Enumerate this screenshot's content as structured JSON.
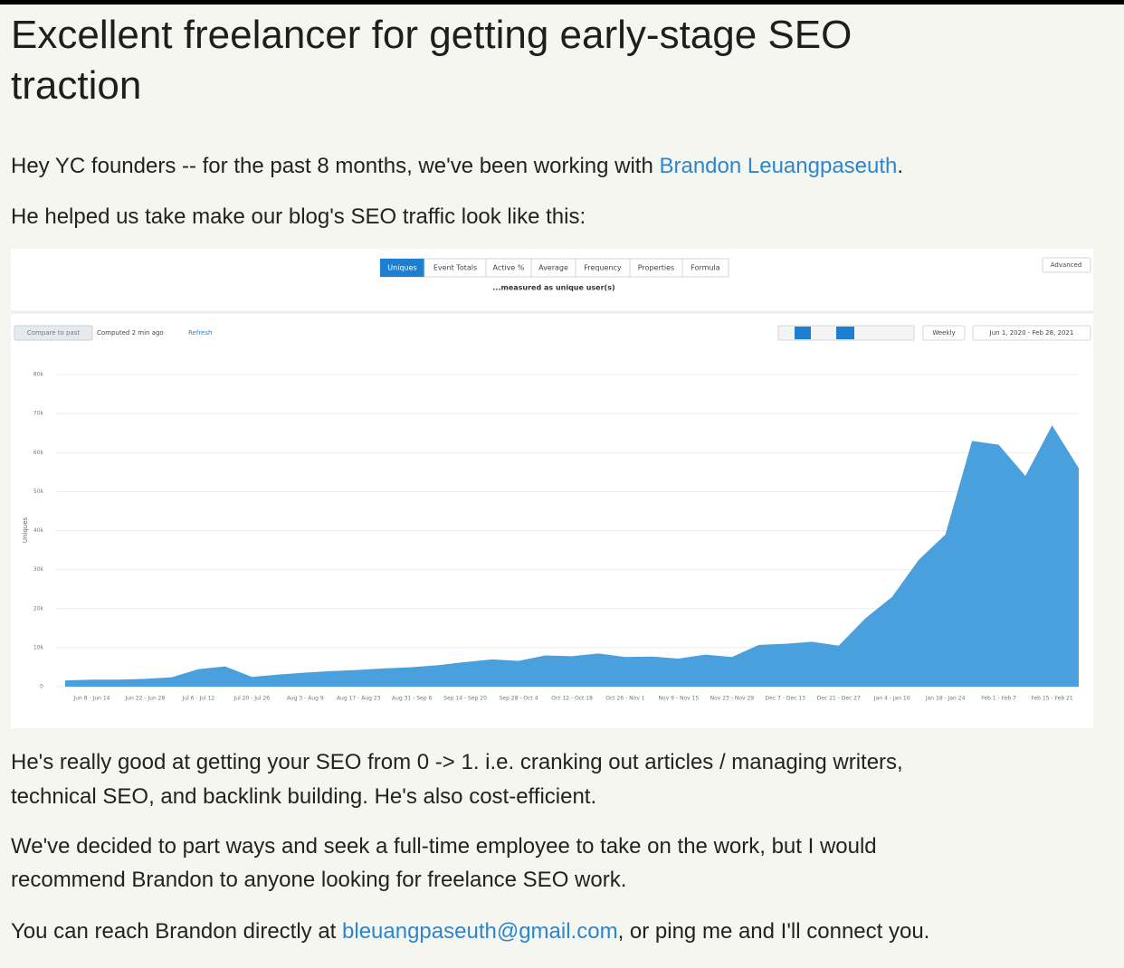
{
  "post": {
    "title_lines": [
      "Excellent freelancer for getting early-stage SEO",
      "traction"
    ],
    "intro": {
      "text": "Hey YC founders -- for the past 8 months, we've been working with ",
      "link": "Brandon Leuangpaseuth",
      "end": "."
    },
    "lead": "He helped us take make our blog's SEO traffic look like this:",
    "paragraphs": [
      [
        "He's really good at getting your SEO from 0 -> 1. i.e. cranking out articles / managing writers,",
        "technical SEO, and backlink building. He's also cost-efficient."
      ],
      [
        "We've decided to part ways and seek a full-time employee to take on the work, but I would",
        "recommend Brandon to anyone looking for freelance SEO work."
      ]
    ],
    "contact": {
      "text": "You can reach Brandon directly at ",
      "link": "bleuangpaseuth@gmail.com",
      "end": ", or ping me and I'll connect you."
    }
  },
  "chart_data": {
    "type": "area",
    "controls": {
      "tabs": [
        "Uniques",
        "Event Totals",
        "Active %",
        "Average",
        "Frequency",
        "Properties",
        "Formula"
      ],
      "measured": "...measured as unique user(s)",
      "advanced": "Advanced",
      "compare": "Compare to past",
      "computed": "Computed 2 min ago",
      "refresh": "Refresh",
      "interval": "Weekly",
      "range": "Jun 1, 2020 - Feb 28, 2021"
    },
    "y_label": "Uniques",
    "color": "#4a9fdd",
    "ylim": [
      0,
      80000
    ],
    "yticks": [
      0,
      {
        "value": 10000,
        "label": "10k"
      },
      {
        "value": 20000,
        "label": "20k"
      },
      {
        "value": 30000,
        "label": "30k"
      },
      {
        "value": 40000,
        "label": "40k"
      },
      {
        "value": 50000,
        "label": "50k"
      },
      {
        "value": 60000,
        "label": "60k"
      },
      {
        "value": 70000,
        "label": "70k"
      },
      {
        "value": 80000,
        "label": "80k"
      }
    ],
    "grid": true,
    "categories": [
      null,
      "Jun 8 - Jun 14",
      null,
      "Jun 22 - Jun 28",
      null,
      "Jul 6 - Jul 12",
      null,
      "Jul 20 - Jul 26",
      null,
      "Aug 3 - Aug 9",
      null,
      "Aug 17 - Aug 23",
      null,
      "Aug 31 - Sep 6",
      null,
      "Sep 14 - Sep 20",
      null,
      "Sep 28 - Oct 4",
      null,
      "Oct 12 - Oct 18",
      null,
      "Oct 26 - Nov 1",
      null,
      "Nov 9 - Nov 15",
      null,
      "Nov 23 - Nov 29",
      null,
      "Dec 7 - Dec 13",
      null,
      "Dec 21 - Dec 27",
      null,
      "Jan 4 - Jan 10",
      null,
      "Jan 18 - Jan 24",
      null,
      "Feb 1 - Feb 7",
      null,
      "Feb 15 - Feb 21",
      null
    ],
    "values": [
      1600,
      1800,
      1800,
      2000,
      2400,
      4500,
      5200,
      2500,
      3100,
      3600,
      4000,
      4300,
      4700,
      5000,
      5500,
      6300,
      7000,
      6600,
      8000,
      7800,
      8500,
      7600,
      7700,
      7200,
      8200,
      7600,
      10700,
      11000,
      11500,
      10500,
      17500,
      23000,
      32500,
      39000,
      63000,
      62000,
      54000,
      67000,
      56000
    ]
  }
}
